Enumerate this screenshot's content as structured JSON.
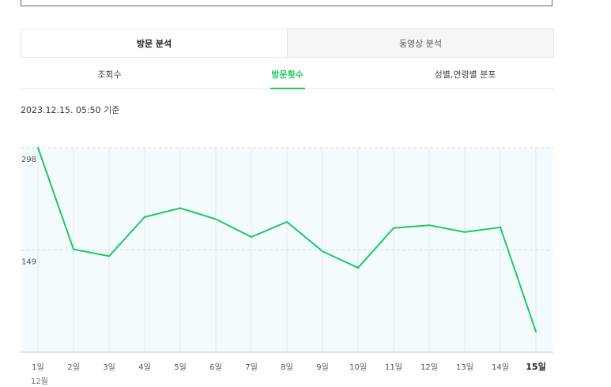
{
  "tabs": {
    "main": [
      {
        "label": "방문 분석",
        "active": true
      },
      {
        "label": "동영상 분석",
        "active": false
      }
    ],
    "sub": [
      {
        "label": "조회수",
        "active": false
      },
      {
        "label": "방문횟수",
        "active": true
      },
      {
        "label": "성별,연령별 분포",
        "active": false
      }
    ]
  },
  "timestamp": "2023.12.15. 05:50 기준",
  "colors": {
    "accent": "#1fc95f",
    "plot_bg": "#f4fbff",
    "grid": "#dfe9ef"
  },
  "chart_data": {
    "type": "line",
    "title": "",
    "xlabel": "",
    "ylabel": "",
    "categories": [
      "1일",
      "2일",
      "3일",
      "4일",
      "5일",
      "6일",
      "7일",
      "8일",
      "9일",
      "10일",
      "11일",
      "12일",
      "13일",
      "14일",
      "15일"
    ],
    "x_group_label": "12월",
    "highlight_category": "15일",
    "yticks": [
      149,
      298
    ],
    "ylim": [
      0,
      298
    ],
    "grid": true,
    "series": [
      {
        "name": "",
        "values": [
          298,
          150,
          140,
          197,
          210,
          194,
          168,
          190,
          147,
          123,
          181,
          185,
          175,
          182,
          30
        ]
      }
    ]
  }
}
